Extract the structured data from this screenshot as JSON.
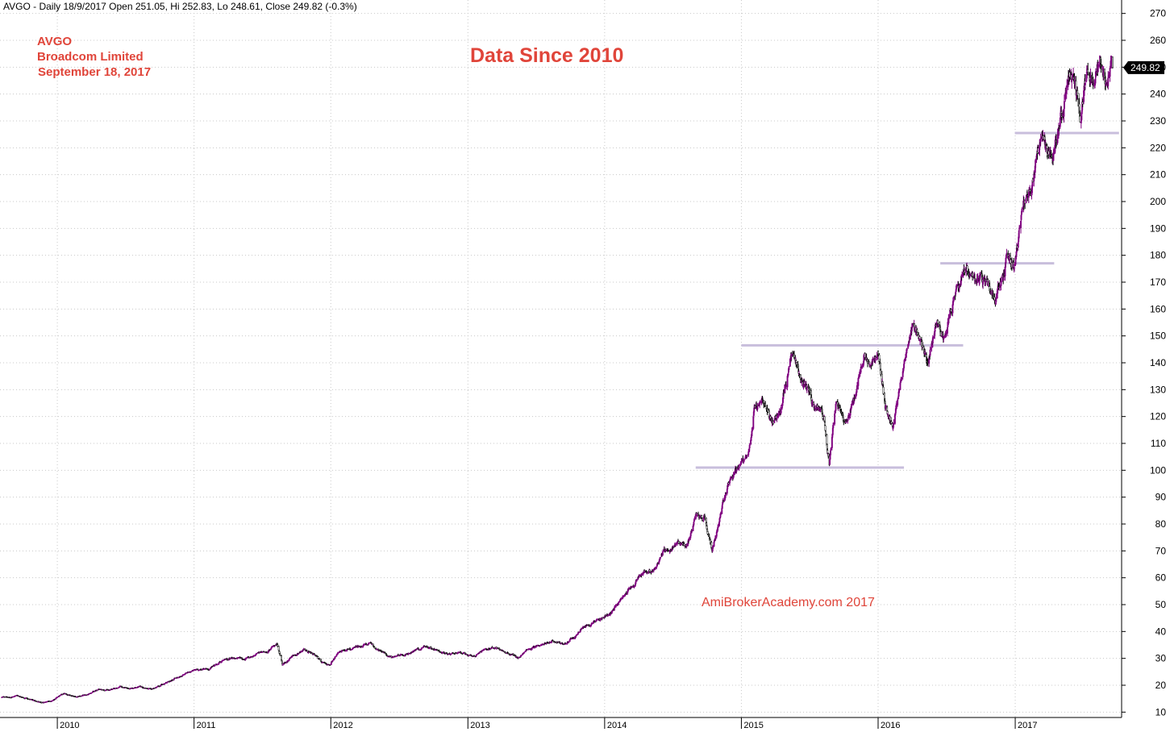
{
  "header": {
    "text": "AVGO - Daily 18/9/2017 Open 251.05, Hi 252.83, Lo 248.61, Close 249.82 (-0.3%)"
  },
  "annotations": {
    "ticker": "AVGO",
    "company": "Broadcom Limited",
    "date": "September 18, 2017",
    "title": "Data Since 2010",
    "watermark": "AmiBrokerAcademy.com  2017"
  },
  "last_price": {
    "value": 249.82,
    "label": "249.82"
  },
  "colors": {
    "up_candle": "#800080",
    "down_candle": "#000000",
    "support_line": "#c8bedc",
    "annotation_red": "#e0453a",
    "grid": "#c8c8c8",
    "badge": "#000000"
  },
  "chart_data": {
    "type": "line",
    "title": "Data Since 2010",
    "xlabel": "",
    "ylabel": "",
    "grid": true,
    "ylim": [
      8,
      275
    ],
    "xlim": [
      "2009-08-01",
      "2017-10-12"
    ],
    "y_ticks": [
      10,
      20,
      30,
      40,
      50,
      60,
      70,
      80,
      90,
      100,
      110,
      120,
      130,
      140,
      150,
      160,
      170,
      180,
      190,
      200,
      210,
      220,
      230,
      240,
      250,
      260,
      270
    ],
    "x_ticks": [
      {
        "label": "2010",
        "date": "2010-01-01"
      },
      {
        "label": "2011",
        "date": "2011-01-01"
      },
      {
        "label": "2012",
        "date": "2012-01-01"
      },
      {
        "label": "2013",
        "date": "2013-01-01"
      },
      {
        "label": "2014",
        "date": "2014-01-01"
      },
      {
        "label": "2015",
        "date": "2015-01-01"
      },
      {
        "label": "2016",
        "date": "2016-01-01"
      },
      {
        "label": "2017",
        "date": "2017-01-01"
      }
    ],
    "series": [
      {
        "style": "candlestick-close",
        "points": [
          {
            "x": "2009-08-06",
            "y": 15.5
          },
          {
            "x": "2009-09-15",
            "y": 16.0
          },
          {
            "x": "2009-10-25",
            "y": 14.5
          },
          {
            "x": "2009-11-20",
            "y": 13.5
          },
          {
            "x": "2009-12-20",
            "y": 14.5
          },
          {
            "x": "2010-01-20",
            "y": 17.0
          },
          {
            "x": "2010-02-20",
            "y": 15.5
          },
          {
            "x": "2010-03-20",
            "y": 16.5
          },
          {
            "x": "2010-04-20",
            "y": 18.5
          },
          {
            "x": "2010-05-20",
            "y": 18.5
          },
          {
            "x": "2010-06-20",
            "y": 19.5
          },
          {
            "x": "2010-07-10",
            "y": 18.5
          },
          {
            "x": "2010-08-10",
            "y": 19.5
          },
          {
            "x": "2010-09-10",
            "y": 18.5
          },
          {
            "x": "2010-10-10",
            "y": 20.5
          },
          {
            "x": "2010-11-10",
            "y": 22.5
          },
          {
            "x": "2010-12-10",
            "y": 24.5
          },
          {
            "x": "2011-01-15",
            "y": 26.0
          },
          {
            "x": "2011-02-15",
            "y": 26.5
          },
          {
            "x": "2011-03-15",
            "y": 29.0
          },
          {
            "x": "2011-04-15",
            "y": 30.5
          },
          {
            "x": "2011-05-15",
            "y": 29.5
          },
          {
            "x": "2011-06-15",
            "y": 31.5
          },
          {
            "x": "2011-07-15",
            "y": 33.0
          },
          {
            "x": "2011-08-10",
            "y": 35.0
          },
          {
            "x": "2011-08-25",
            "y": 27.5
          },
          {
            "x": "2011-09-20",
            "y": 30.5
          },
          {
            "x": "2011-10-20",
            "y": 33.5
          },
          {
            "x": "2011-11-15",
            "y": 31.5
          },
          {
            "x": "2011-12-10",
            "y": 28.5
          },
          {
            "x": "2011-12-30",
            "y": 28.0
          },
          {
            "x": "2012-01-20",
            "y": 32.0
          },
          {
            "x": "2012-02-20",
            "y": 33.5
          },
          {
            "x": "2012-03-20",
            "y": 34.5
          },
          {
            "x": "2012-04-15",
            "y": 35.5
          },
          {
            "x": "2012-05-15",
            "y": 32.5
          },
          {
            "x": "2012-06-15",
            "y": 30.5
          },
          {
            "x": "2012-07-15",
            "y": 31.5
          },
          {
            "x": "2012-08-15",
            "y": 33.0
          },
          {
            "x": "2012-09-15",
            "y": 34.5
          },
          {
            "x": "2012-10-15",
            "y": 32.5
          },
          {
            "x": "2012-11-15",
            "y": 31.5
          },
          {
            "x": "2012-12-15",
            "y": 32.0
          },
          {
            "x": "2013-01-15",
            "y": 30.5
          },
          {
            "x": "2013-02-15",
            "y": 33.0
          },
          {
            "x": "2013-03-15",
            "y": 34.0
          },
          {
            "x": "2013-04-15",
            "y": 32.0
          },
          {
            "x": "2013-05-15",
            "y": 30.5
          },
          {
            "x": "2013-06-15",
            "y": 33.5
          },
          {
            "x": "2013-07-15",
            "y": 35.5
          },
          {
            "x": "2013-08-15",
            "y": 36.5
          },
          {
            "x": "2013-09-15",
            "y": 35.5
          },
          {
            "x": "2013-10-15",
            "y": 38.5
          },
          {
            "x": "2013-11-15",
            "y": 42.5
          },
          {
            "x": "2013-12-15",
            "y": 44.0
          },
          {
            "x": "2014-01-10",
            "y": 46.5
          },
          {
            "x": "2014-02-10",
            "y": 51.0
          },
          {
            "x": "2014-03-10",
            "y": 56.0
          },
          {
            "x": "2014-04-10",
            "y": 61.0
          },
          {
            "x": "2014-05-10",
            "y": 63.0
          },
          {
            "x": "2014-06-10",
            "y": 70.0
          },
          {
            "x": "2014-07-10",
            "y": 72.0
          },
          {
            "x": "2014-08-10",
            "y": 72.5
          },
          {
            "x": "2014-09-05",
            "y": 84.0
          },
          {
            "x": "2014-09-25",
            "y": 82.5
          },
          {
            "x": "2014-10-15",
            "y": 70.5
          },
          {
            "x": "2014-11-05",
            "y": 83.0
          },
          {
            "x": "2014-12-01",
            "y": 96.5
          },
          {
            "x": "2014-12-20",
            "y": 100.0
          },
          {
            "x": "2015-01-10",
            "y": 104.5
          },
          {
            "x": "2015-01-25",
            "y": 110.0
          },
          {
            "x": "2015-02-05",
            "y": 122.0
          },
          {
            "x": "2015-02-25",
            "y": 125.0
          },
          {
            "x": "2015-03-25",
            "y": 118.0
          },
          {
            "x": "2015-04-15",
            "y": 122.5
          },
          {
            "x": "2015-05-10",
            "y": 140.0
          },
          {
            "x": "2015-05-20",
            "y": 145.0
          },
          {
            "x": "2015-06-15",
            "y": 133.0
          },
          {
            "x": "2015-07-15",
            "y": 124.0
          },
          {
            "x": "2015-08-10",
            "y": 120.0
          },
          {
            "x": "2015-08-24",
            "y": 103.0
          },
          {
            "x": "2015-09-10",
            "y": 125.5
          },
          {
            "x": "2015-10-10",
            "y": 117.0
          },
          {
            "x": "2015-11-01",
            "y": 128.5
          },
          {
            "x": "2015-11-25",
            "y": 144.5
          },
          {
            "x": "2015-12-10",
            "y": 139.5
          },
          {
            "x": "2015-12-31",
            "y": 145.0
          },
          {
            "x": "2016-01-20",
            "y": 123.0
          },
          {
            "x": "2016-02-10",
            "y": 117.5
          },
          {
            "x": "2016-03-10",
            "y": 140.5
          },
          {
            "x": "2016-04-01",
            "y": 154.5
          },
          {
            "x": "2016-04-25",
            "y": 147.0
          },
          {
            "x": "2016-05-10",
            "y": 141.0
          },
          {
            "x": "2016-06-05",
            "y": 156.5
          },
          {
            "x": "2016-06-25",
            "y": 149.5
          },
          {
            "x": "2016-07-20",
            "y": 163.0
          },
          {
            "x": "2016-08-20",
            "y": 174.5
          },
          {
            "x": "2016-09-15",
            "y": 170.0
          },
          {
            "x": "2016-10-15",
            "y": 172.0
          },
          {
            "x": "2016-11-10",
            "y": 162.0
          },
          {
            "x": "2016-12-10",
            "y": 178.0
          },
          {
            "x": "2016-12-31",
            "y": 177.0
          },
          {
            "x": "2017-01-20",
            "y": 197.0
          },
          {
            "x": "2017-02-15",
            "y": 206.0
          },
          {
            "x": "2017-03-10",
            "y": 222.0
          },
          {
            "x": "2017-04-10",
            "y": 213.5
          },
          {
            "x": "2017-05-05",
            "y": 231.0
          },
          {
            "x": "2017-05-25",
            "y": 249.0
          },
          {
            "x": "2017-06-10",
            "y": 246.0
          },
          {
            "x": "2017-06-25",
            "y": 231.0
          },
          {
            "x": "2017-07-15",
            "y": 252.0
          },
          {
            "x": "2017-08-01",
            "y": 249.0
          },
          {
            "x": "2017-08-15",
            "y": 254.0
          },
          {
            "x": "2017-09-01",
            "y": 245.0
          },
          {
            "x": "2017-09-18",
            "y": 249.82
          }
        ]
      }
    ],
    "support_lines": [
      {
        "x_start": "2014-09-01",
        "x_end": "2016-03-10",
        "y": 101.0
      },
      {
        "x_start": "2015-01-01",
        "x_end": "2016-08-15",
        "y": 146.5
      },
      {
        "x_start": "2016-06-15",
        "x_end": "2017-04-15",
        "y": 177.0
      },
      {
        "x_start": "2016-12-31",
        "x_end": "2017-10-05",
        "y": 225.5
      }
    ]
  }
}
